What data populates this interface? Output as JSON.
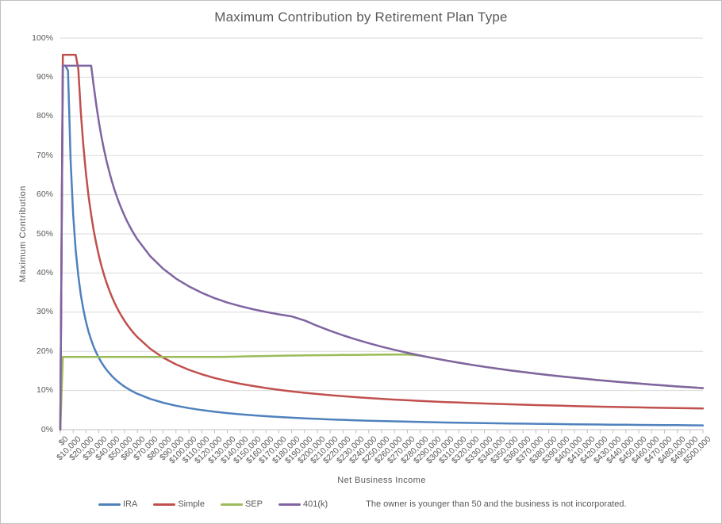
{
  "title": "Maximum Contribution by Retirement Plan Type",
  "note": "The owner is younger than 50 and the business is not incorporated.",
  "chart_data": {
    "type": "line",
    "title": "Maximum Contribution by Retirement Plan Type",
    "xlabel": "Net Business Income",
    "ylabel": "Maximum Contribution",
    "xlim": [
      0,
      500000
    ],
    "ylim": [
      0,
      100
    ],
    "grid": "horizontal-major",
    "legend_position": "bottom",
    "axis_color": "#bfbfbf",
    "gridline_color": "#d9d9d9",
    "text_color": "#595959",
    "y_tick_labels": [
      "0%",
      "10%",
      "20%",
      "30%",
      "40%",
      "50%",
      "60%",
      "70%",
      "80%",
      "90%",
      "100%"
    ],
    "x_tick_labels": [
      "$0",
      "$10,000",
      "$20,000",
      "$30,000",
      "$40,000",
      "$50,000",
      "$60,000",
      "$70,000",
      "$80,000",
      "$90,000",
      "$100,000",
      "$110,000",
      "$120,000",
      "$130,000",
      "$140,000",
      "$150,000",
      "$160,000",
      "$170,000",
      "$180,000",
      "$190,000",
      "$200,000",
      "$210,000",
      "$220,000",
      "$230,000",
      "$240,000",
      "$250,000",
      "$260,000",
      "$270,000",
      "$280,000",
      "$290,000",
      "$300,000",
      "$310,000",
      "$320,000",
      "$330,000",
      "$340,000",
      "$350,000",
      "$360,000",
      "$370,000",
      "$380,000",
      "$390,000",
      "$400,000",
      "$410,000",
      "$420,000",
      "$430,000",
      "$440,000",
      "$450,000",
      "$460,000",
      "$470,000",
      "$480,000",
      "$490,000",
      "$500,000"
    ],
    "x": [
      0,
      2000,
      4000,
      6000,
      8000,
      10000,
      12000,
      14000,
      16000,
      18000,
      20000,
      22000,
      24000,
      26000,
      28000,
      30000,
      32000,
      34000,
      36000,
      38000,
      40000,
      42000,
      44000,
      46000,
      48000,
      50000,
      52000,
      54000,
      56000,
      58000,
      60000,
      70000,
      80000,
      90000,
      100000,
      110000,
      120000,
      130000,
      140000,
      150000,
      160000,
      170000,
      180000,
      190000,
      200000,
      210000,
      220000,
      230000,
      240000,
      250000,
      260000,
      270000,
      280000,
      290000,
      300000,
      310000,
      320000,
      330000,
      340000,
      350000,
      360000,
      370000,
      380000,
      390000,
      400000,
      410000,
      420000,
      430000,
      440000,
      450000,
      460000,
      470000,
      480000,
      490000,
      500000
    ],
    "y_unit": "percent",
    "series": [
      {
        "name": "IRA",
        "color": "#4F81BD",
        "values": [
          0,
          92.94,
          92.94,
          91.67,
          68.75,
          55,
          45.83,
          39.29,
          34.38,
          30.56,
          27.5,
          25,
          22.92,
          21.15,
          19.64,
          18.33,
          17.19,
          16.18,
          15.28,
          14.47,
          13.75,
          13.1,
          12.5,
          11.96,
          11.46,
          11,
          10.58,
          10.19,
          9.82,
          9.48,
          9.17,
          7.86,
          6.88,
          6.11,
          5.5,
          5,
          4.58,
          4.23,
          3.93,
          3.67,
          3.44,
          3.24,
          3.06,
          2.89,
          2.75,
          2.62,
          2.5,
          2.39,
          2.29,
          2.2,
          2.12,
          2.04,
          1.96,
          1.9,
          1.83,
          1.77,
          1.72,
          1.67,
          1.62,
          1.57,
          1.53,
          1.49,
          1.45,
          1.41,
          1.38,
          1.34,
          1.31,
          1.28,
          1.25,
          1.22,
          1.2,
          1.17,
          1.15,
          1.12,
          1.1
        ]
      },
      {
        "name": "Simple",
        "color": "#C0504D",
        "values": [
          0,
          95.72,
          95.72,
          95.72,
          95.72,
          95.72,
          95.72,
          92.07,
          80.91,
          72.23,
          65.29,
          59.61,
          54.87,
          50.86,
          47.43,
          44.45,
          41.85,
          39.55,
          37.51,
          35.68,
          34.04,
          32.55,
          31.2,
          29.96,
          28.83,
          27.79,
          26.83,
          25.94,
          25.11,
          24.34,
          23.62,
          20.65,
          18.41,
          16.68,
          15.29,
          14.15,
          13.2,
          12.41,
          11.73,
          11.15,
          10.63,
          10.18,
          9.78,
          9.42,
          9.1,
          8.81,
          8.54,
          8.3,
          8.08,
          7.87,
          7.68,
          7.51,
          7.35,
          7.19,
          7.05,
          6.92,
          6.8,
          6.68,
          6.57,
          6.47,
          6.37,
          6.28,
          6.19,
          6.11,
          6.03,
          5.96,
          5.88,
          5.82,
          5.75,
          5.69,
          5.63,
          5.57,
          5.52,
          5.47,
          5.42
        ]
      },
      {
        "name": "SEP",
        "color": "#9BBB59",
        "values": [
          0,
          18.59,
          18.59,
          18.59,
          18.59,
          18.59,
          18.59,
          18.59,
          18.59,
          18.59,
          18.59,
          18.59,
          18.59,
          18.59,
          18.59,
          18.59,
          18.59,
          18.59,
          18.59,
          18.59,
          18.59,
          18.59,
          18.59,
          18.59,
          18.59,
          18.59,
          18.59,
          18.59,
          18.59,
          18.59,
          18.59,
          18.59,
          18.59,
          18.59,
          18.59,
          18.59,
          18.59,
          18.6,
          18.68,
          18.75,
          18.81,
          18.87,
          18.92,
          18.96,
          19,
          19.03,
          19.06,
          19.09,
          19.12,
          19.14,
          19.17,
          19.19,
          18.93,
          18.28,
          17.67,
          17.1,
          16.56,
          16.06,
          15.59,
          15.14,
          14.72,
          14.32,
          13.95,
          13.59,
          13.25,
          12.93,
          12.62,
          12.33,
          12.05,
          11.78,
          11.52,
          11.28,
          11.04,
          10.82,
          10.6
        ]
      },
      {
        "name": "401(k)",
        "color": "#8064A2",
        "values": [
          0,
          92.94,
          92.94,
          92.94,
          92.94,
          92.94,
          92.94,
          92.94,
          92.94,
          92.94,
          92.94,
          92.94,
          92.94,
          87.82,
          82.87,
          78.59,
          74.84,
          71.53,
          68.59,
          65.96,
          63.59,
          61.44,
          59.5,
          57.72,
          56.09,
          54.59,
          53.2,
          51.92,
          50.73,
          49.62,
          48.59,
          44.3,
          41.09,
          38.59,
          36.59,
          34.95,
          33.59,
          32.45,
          31.54,
          30.75,
          30.06,
          29.46,
          28.92,
          27.89,
          26.5,
          25.24,
          24.09,
          23.04,
          22.08,
          21.2,
          20.38,
          19.63,
          18.93,
          18.28,
          17.67,
          17.1,
          16.56,
          16.06,
          15.59,
          15.14,
          14.72,
          14.32,
          13.95,
          13.59,
          13.25,
          12.93,
          12.62,
          12.33,
          12.05,
          11.78,
          11.52,
          11.28,
          11.04,
          10.82,
          10.6
        ]
      }
    ],
    "note": "The owner is younger than 50 and the business is not incorporated."
  }
}
